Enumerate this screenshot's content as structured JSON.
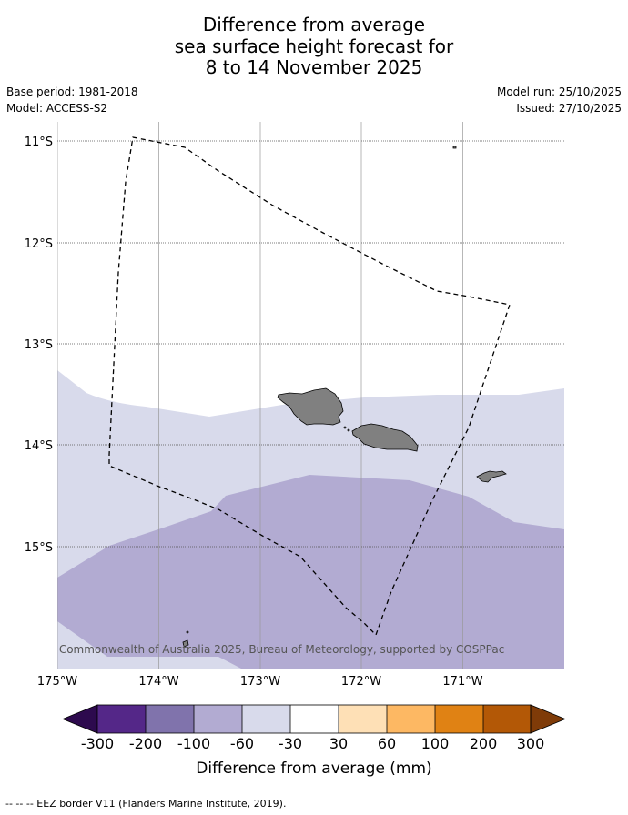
{
  "title": {
    "line1": "Difference from average",
    "line2": "sea surface height forecast for",
    "line3": "8 to 14 November 2025"
  },
  "meta": {
    "base_period": "Base period: 1981-2018",
    "model": "Model: ACCESS-S2",
    "model_run": "Model run: 25/10/2025",
    "issued": "Issued: 27/10/2025"
  },
  "map": {
    "lon_labels": [
      "175°W",
      "174°W",
      "173°W",
      "172°W",
      "171°W"
    ],
    "lat_labels": [
      "11°S",
      "12°S",
      "13°S",
      "14°S",
      "15°S"
    ],
    "copyright": "© Commonwealth of Australia 2025, Bureau of Meteorology, supported by COSPPac"
  },
  "legend": {
    "ticks": [
      "-300",
      "-200",
      "-100",
      "-60",
      "-30",
      "30",
      "60",
      "100",
      "200",
      "300"
    ],
    "title": "Difference from average (mm)",
    "colors": {
      "under": "#2d0a4e",
      "bins": [
        "#542788",
        "#8073ac",
        "#b2abd2",
        "#d8daeb",
        "#ffffff",
        "#fee0b6",
        "#fdb863",
        "#e08214",
        "#b35806"
      ],
      "over": "#7f3b08"
    }
  },
  "footer": {
    "eez_note": "--  --  -- EEZ border V11 (Flanders Marine Institute, 2019)."
  }
}
